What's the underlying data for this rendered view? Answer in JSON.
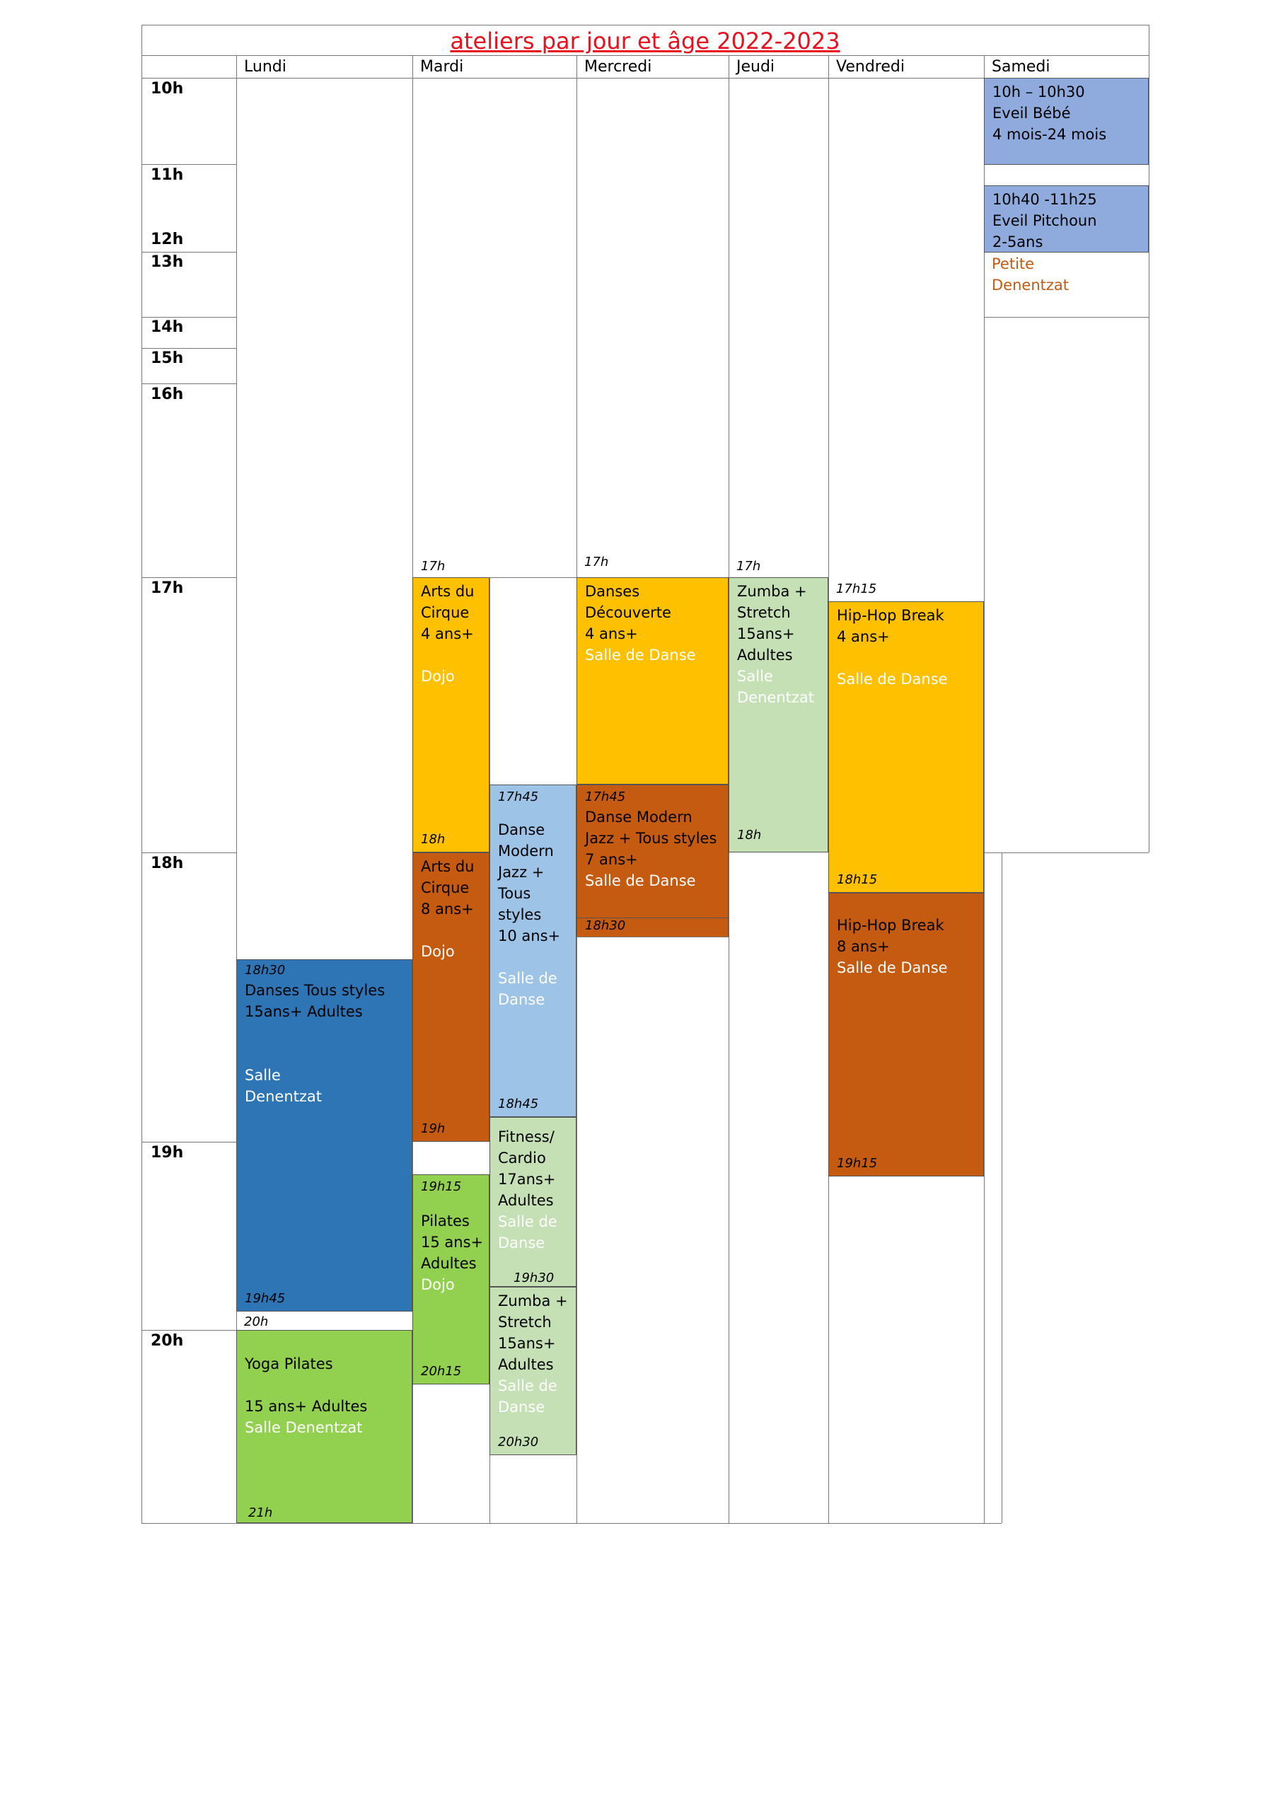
{
  "title": "ateliers par jour et âge 2022-2023",
  "days": [
    "Lundi",
    "Mardi",
    "Mercredi",
    "Jeudi",
    "Vendredi",
    "Samedi"
  ],
  "hours": [
    "10h",
    "11h",
    "12h",
    "13h",
    "14h",
    "15h",
    "16h",
    "17h",
    "18h",
    "19h",
    "20h"
  ],
  "colors": {
    "yellow": "#ffc000",
    "orange": "#c55a11",
    "light_green": "#c5e0b4",
    "green": "#92d050",
    "light_blue": "#9dc3e6",
    "blue": "#2e75b6",
    "periwinkle": "#8faadc",
    "title_red": "#e8121e"
  },
  "activities": {
    "samedi_eveil_bebe": {
      "time": "10h – 10h30",
      "name": "Eveil Bébé",
      "age": "4 mois-24 mois"
    },
    "samedi_eveil_pitchoun": {
      "time": "10h40 -11h25",
      "name": "Eveil Pitchoun",
      "age": "2-5ans"
    },
    "samedi_place": {
      "line1": "Petite",
      "line2": "Denentzat"
    },
    "mardi_arts_cirque_4": {
      "start": "17h",
      "line1": "Arts du",
      "line2": "Cirque",
      "age": "4 ans+",
      "room": "Dojo",
      "end": "18h"
    },
    "mardi_arts_cirque_8": {
      "line1": "Arts du",
      "line2": "Cirque",
      "age": "8 ans+",
      "room": "Dojo",
      "end": "19h"
    },
    "mardi_danse_jazz": {
      "start": "17h45",
      "line1": "Danse",
      "line2": "Modern",
      "line3": "Jazz +",
      "line4": "Tous",
      "line5": "styles",
      "age": "10 ans+",
      "room1": "Salle de",
      "room2": "Danse",
      "end": "18h45"
    },
    "mardi_fitness": {
      "line1": "Fitness/",
      "line2": "Cardio",
      "age": "17ans+",
      "line4": "Adultes",
      "room1": "Salle de",
      "room2": "Danse",
      "end": "19h30"
    },
    "mardi_pilates": {
      "start": "19h15",
      "name": "Pilates",
      "age": "15 ans+",
      "line3": "Adultes",
      "room": "Dojo",
      "end": "20h15"
    },
    "mardi_zumba": {
      "line1": "Zumba +",
      "line2": "Stretch",
      "age": "15ans+",
      "line4": "Adultes",
      "room1": "Salle de",
      "room2": "Danse",
      "end": "20h30"
    },
    "mercredi_danses_decouverte": {
      "start": "17h",
      "line1": "Danses",
      "line2": "Découverte",
      "age": "4 ans+",
      "room": "Salle de Danse"
    },
    "mercredi_danse_modern": {
      "start": "17h45",
      "line1": "Danse Modern",
      "line2": "Jazz + Tous styles",
      "age": "7 ans+",
      "room": "Salle de Danse",
      "end": "18h30"
    },
    "jeudi_zumba": {
      "start": "17h",
      "line1": "Zumba +",
      "line2": "Stretch",
      "age": "15ans+",
      "line4": "Adultes",
      "room1": "Salle",
      "room2": "Denentzat",
      "end": "18h"
    },
    "vendredi_hiphop_4": {
      "start": "17h15",
      "name": "Hip-Hop Break",
      "age": "4 ans+",
      "room": "Salle de Danse",
      "end": "18h15"
    },
    "vendredi_hiphop_8": {
      "name": "Hip-Hop Break",
      "age": "8 ans+",
      "room": "Salle de Danse",
      "end": "19h15"
    },
    "lundi_danses": {
      "start": "18h30",
      "line1": "Danses Tous styles",
      "line2": "15ans+ Adultes",
      "room1": "Salle",
      "room2": "Denentzat",
      "end": "19h45"
    },
    "lundi_yoga": {
      "start": "20h",
      "name": "Yoga Pilates",
      "age": "15 ans+ Adultes",
      "room": "Salle Denentzat",
      "end": "21h"
    }
  }
}
